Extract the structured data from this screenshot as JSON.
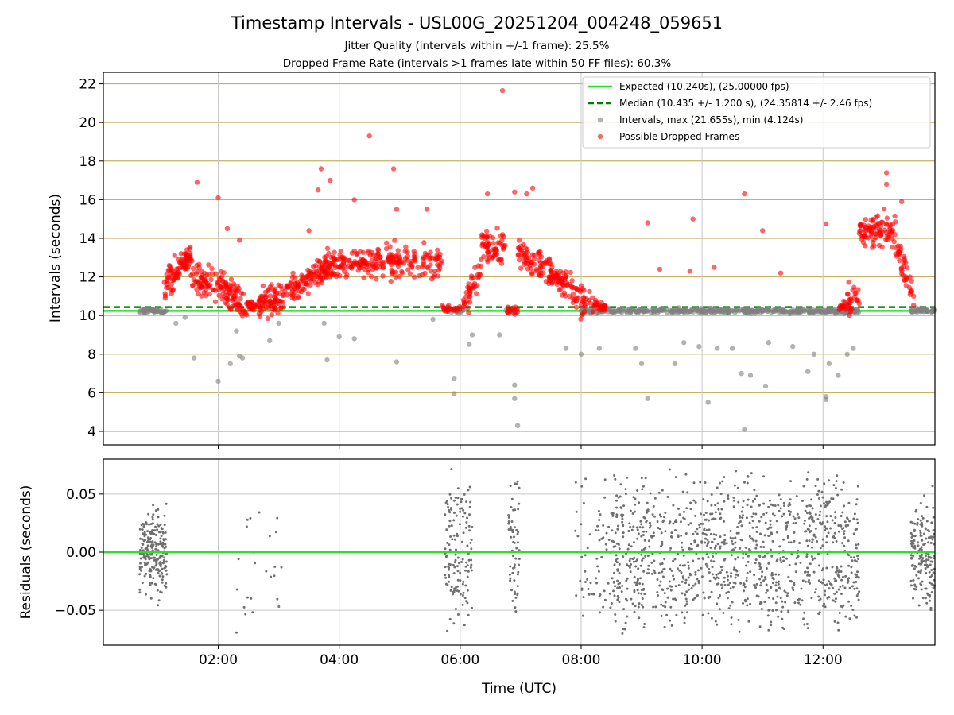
{
  "title": "Timestamp Intervals - USL00G_20251204_004248_059651",
  "subtitle_1": "Jitter Quality (intervals within +/-1 frame): 25.5%",
  "subtitle_2": "Dropped Frame Rate (intervals >1 frames late within 50 FF files): 60.3%",
  "colors": {
    "expected": "#22e622",
    "median": "#008000",
    "intervals": "#808080",
    "dropped": "#ff0000",
    "hgrid": "#c8b060",
    "vgrid": "#c8c8c8"
  },
  "chart_data": [
    {
      "type": "scatter",
      "panel": "top",
      "xlabel": "",
      "ylabel": "Intervals (seconds)",
      "xlim_hours": [
        0.1,
        13.85
      ],
      "ylim": [
        3.3,
        22.6
      ],
      "yticks": [
        4,
        6,
        8,
        10,
        12,
        14,
        16,
        18,
        20,
        22
      ],
      "ytick_labels": [
        "4",
        "6",
        "8",
        "10",
        "12",
        "14",
        "16",
        "18",
        "20",
        "22"
      ],
      "grid": "on",
      "legend_position": "top-right",
      "expected_value": 10.24,
      "median_value": 10.435,
      "legend": [
        "Expected (10.240s), (25.00000 fps)",
        "Median (10.435 +/- 1.200 s), (24.35814 +/- 2.46 fps)",
        "Intervals, max (21.655s), min (4.124s)",
        "Possible Dropped Frames"
      ],
      "dropped_segments": [
        {
          "x": [
            1.1,
            1.55
          ],
          "y": [
            11.4,
            13.3
          ],
          "n": 90
        },
        {
          "x": [
            1.55,
            2.1
          ],
          "y": [
            11.9,
            11.5
          ],
          "n": 80
        },
        {
          "x": [
            2.1,
            2.55
          ],
          "y": [
            11.2,
            10.5
          ],
          "n": 80
        },
        {
          "x": [
            2.55,
            3.1
          ],
          "y": [
            10.5,
            11.0
          ],
          "n": 90
        },
        {
          "x": [
            3.1,
            3.8
          ],
          "y": [
            11.2,
            12.5
          ],
          "n": 110
        },
        {
          "x": [
            3.8,
            4.6
          ],
          "y": [
            12.6,
            12.8
          ],
          "n": 110
        },
        {
          "x": [
            4.6,
            5.7
          ],
          "y": [
            12.8,
            12.7
          ],
          "n": 130
        },
        {
          "x": [
            5.7,
            6.0
          ],
          "y": [
            10.35,
            10.35
          ],
          "n": 20
        },
        {
          "x": [
            6.05,
            6.35
          ],
          "y": [
            10.6,
            12.3
          ],
          "n": 40
        },
        {
          "x": [
            6.35,
            6.75
          ],
          "y": [
            13.8,
            13.5
          ],
          "n": 60
        },
        {
          "x": [
            6.75,
            6.95
          ],
          "y": [
            10.35,
            10.35
          ],
          "n": 15
        },
        {
          "x": [
            6.95,
            7.4
          ],
          "y": [
            13.2,
            12.6
          ],
          "n": 60
        },
        {
          "x": [
            7.4,
            7.9
          ],
          "y": [
            12.4,
            11.1
          ],
          "n": 80
        },
        {
          "x": [
            7.9,
            8.4
          ],
          "y": [
            10.9,
            10.4
          ],
          "n": 60
        },
        {
          "x": [
            12.25,
            12.6
          ],
          "y": [
            10.3,
            11.0
          ],
          "n": 40
        },
        {
          "x": [
            12.6,
            13.2
          ],
          "y": [
            14.3,
            14.5
          ],
          "n": 90
        },
        {
          "x": [
            13.2,
            13.5
          ],
          "y": [
            13.8,
            10.8
          ],
          "n": 40
        }
      ],
      "dropped_outliers": [
        [
          1.65,
          16.9
        ],
        [
          2.0,
          16.1
        ],
        [
          2.15,
          14.5
        ],
        [
          2.35,
          13.9
        ],
        [
          3.5,
          14.4
        ],
        [
          3.65,
          16.5
        ],
        [
          3.7,
          17.6
        ],
        [
          3.85,
          17.0
        ],
        [
          4.25,
          16.0
        ],
        [
          4.5,
          19.3
        ],
        [
          4.9,
          17.6
        ],
        [
          4.95,
          15.5
        ],
        [
          5.45,
          15.5
        ],
        [
          6.45,
          16.3
        ],
        [
          6.7,
          21.65
        ],
        [
          6.9,
          16.4
        ],
        [
          7.2,
          16.6
        ],
        [
          7.1,
          16.3
        ],
        [
          9.1,
          14.8
        ],
        [
          9.85,
          15.0
        ],
        [
          10.7,
          16.3
        ],
        [
          11.0,
          14.4
        ],
        [
          12.05,
          14.75
        ],
        [
          13.05,
          17.4
        ],
        [
          13.05,
          16.8
        ],
        [
          13.3,
          15.9
        ],
        [
          9.8,
          12.3
        ],
        [
          10.2,
          12.5
        ],
        [
          11.3,
          12.2
        ],
        [
          9.3,
          12.4
        ]
      ],
      "interval_outliers": [
        [
          1.3,
          9.6
        ],
        [
          1.45,
          9.9
        ],
        [
          1.6,
          7.8
        ],
        [
          2.0,
          6.6
        ],
        [
          2.2,
          7.5
        ],
        [
          2.35,
          7.9
        ],
        [
          2.4,
          7.8
        ],
        [
          2.3,
          9.2
        ],
        [
          3.0,
          9.6
        ],
        [
          2.85,
          8.7
        ],
        [
          3.75,
          9.6
        ],
        [
          3.8,
          7.7
        ],
        [
          4.0,
          8.9
        ],
        [
          4.25,
          8.8
        ],
        [
          4.95,
          7.6
        ],
        [
          5.55,
          9.8
        ],
        [
          5.9,
          6.75
        ],
        [
          5.9,
          5.95
        ],
        [
          6.15,
          8.5
        ],
        [
          6.2,
          9.0
        ],
        [
          6.65,
          9.0
        ],
        [
          6.9,
          6.4
        ],
        [
          6.9,
          5.7
        ],
        [
          6.95,
          4.3
        ],
        [
          7.75,
          8.3
        ],
        [
          8.0,
          8.0
        ],
        [
          8.3,
          8.3
        ],
        [
          8.9,
          8.3
        ],
        [
          9.0,
          7.5
        ],
        [
          9.1,
          5.7
        ],
        [
          9.55,
          7.5
        ],
        [
          9.95,
          8.4
        ],
        [
          10.1,
          5.5
        ],
        [
          10.5,
          8.3
        ],
        [
          10.65,
          7.0
        ],
        [
          10.7,
          4.1
        ],
        [
          10.8,
          6.9
        ],
        [
          11.05,
          6.35
        ],
        [
          11.5,
          8.4
        ],
        [
          11.75,
          7.1
        ],
        [
          11.85,
          8.0
        ],
        [
          12.05,
          5.8
        ],
        [
          12.05,
          5.65
        ],
        [
          12.25,
          6.9
        ],
        [
          12.4,
          8.0
        ],
        [
          12.5,
          8.3
        ],
        [
          9.7,
          8.6
        ],
        [
          10.25,
          8.3
        ],
        [
          11.1,
          8.6
        ],
        [
          12.1,
          7.5
        ]
      ]
    },
    {
      "type": "scatter",
      "panel": "bottom",
      "xlabel": "Time (UTC)",
      "ylabel": "Residuals (seconds)",
      "xlim_hours": [
        0.1,
        13.85
      ],
      "ylim": [
        -0.08,
        0.08
      ],
      "yticks": [
        -0.05,
        0.0,
        0.05
      ],
      "ytick_labels": [
        "−0.05",
        "0.00",
        "0.05"
      ],
      "xticks_hours": [
        2,
        4,
        6,
        8,
        10,
        12
      ],
      "xtick_labels": [
        "02:00",
        "04:00",
        "06:00",
        "08:00",
        "10:00",
        "12:00"
      ],
      "grid": "on",
      "zero_line": 0.0,
      "clusters": [
        {
          "x": [
            0.7,
            1.15
          ],
          "spread": 0.04,
          "n": 230
        },
        {
          "x": [
            2.2,
            2.7
          ],
          "spread": 0.075,
          "n": 14
        },
        {
          "x": [
            2.75,
            3.2
          ],
          "spread": 0.07,
          "n": 10
        },
        {
          "x": [
            5.75,
            6.2
          ],
          "spread": 0.08,
          "n": 140
        },
        {
          "x": [
            6.8,
            6.98
          ],
          "spread": 0.08,
          "n": 60
        },
        {
          "x": [
            7.9,
            8.5
          ],
          "spread": 0.08,
          "n": 60
        },
        {
          "x": [
            8.5,
            12.6
          ],
          "spread": 0.075,
          "n": 1100
        },
        {
          "x": [
            13.45,
            13.85
          ],
          "spread": 0.05,
          "n": 170
        }
      ]
    }
  ]
}
